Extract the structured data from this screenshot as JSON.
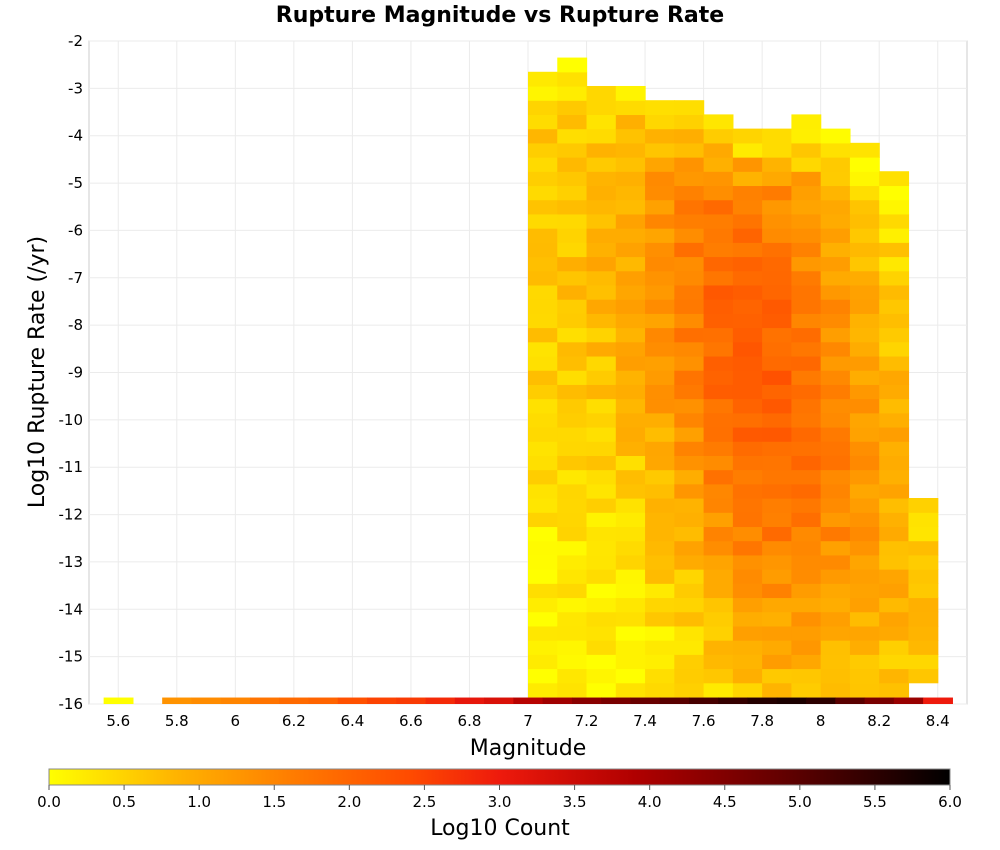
{
  "chart_data": {
    "type": "heatmap",
    "title": "Rupture Magnitude vs Rupture Rate",
    "xlabel": "Magnitude",
    "ylabel": "Log10 Rupture Rate (/yr)",
    "xlim": [
      5.5,
      8.5
    ],
    "ylim": [
      -16,
      -2
    ],
    "x_ticks": [
      "5.6",
      "5.8",
      "6",
      "6.2",
      "6.4",
      "6.6",
      "6.8",
      "7",
      "7.2",
      "7.4",
      "7.6",
      "7.8",
      "8",
      "8.2",
      "8.4"
    ],
    "y_ticks": [
      "-2",
      "-3",
      "-4",
      "-5",
      "-6",
      "-7",
      "-8",
      "-9",
      "-10",
      "-11",
      "-12",
      "-13",
      "-14",
      "-15",
      "-16"
    ],
    "x_bin_width": 0.1,
    "y_bin_height": 0.3,
    "grid": true,
    "colorbar": {
      "label": "Log10 Count",
      "min": 0,
      "max": 6,
      "ticks": [
        "0.0",
        "0.5",
        "1.0",
        "1.5",
        "2.0",
        "2.5",
        "3.0",
        "3.5",
        "4.0",
        "4.5",
        "5.0",
        "5.5",
        "6.0"
      ],
      "colormap": [
        "#ffff00",
        "#ffb400",
        "#ff7800",
        "#ff4b00",
        "#ee1a0c",
        "#b00000",
        "#600000",
        "#000000"
      ]
    },
    "bottom_row": {
      "log_rate": -15.95,
      "x": [
        5.6,
        5.8,
        5.9,
        6.0,
        6.1,
        6.2,
        6.3,
        6.4,
        6.5,
        6.6,
        6.7,
        6.8,
        6.9,
        7.0,
        7.1,
        7.2,
        7.3,
        7.4,
        7.5,
        7.6,
        7.7,
        7.8,
        7.9,
        8.0,
        8.1,
        8.2,
        8.3,
        8.4
      ],
      "values": [
        0.0,
        1.3,
        1.4,
        1.5,
        1.75,
        1.9,
        2.0,
        2.3,
        2.5,
        2.6,
        2.8,
        3.1,
        3.3,
        3.8,
        4.1,
        4.4,
        4.6,
        4.8,
        5.0,
        5.2,
        5.4,
        5.6,
        5.7,
        5.5,
        5.0,
        4.6,
        4.2,
        3.0
      ]
    },
    "columns": [
      {
        "x": 7.05,
        "rate_min": -15.85,
        "rate_max": -2.65
      },
      {
        "x": 7.15,
        "rate_min": -15.85,
        "rate_max": -2.4
      },
      {
        "x": 7.25,
        "rate_min": -15.85,
        "rate_max": -2.95
      },
      {
        "x": 7.35,
        "rate_min": -15.85,
        "rate_max": -2.95
      },
      {
        "x": 7.45,
        "rate_min": -15.85,
        "rate_max": -3.25
      },
      {
        "x": 7.55,
        "rate_min": -15.85,
        "rate_max": -3.25
      },
      {
        "x": 7.65,
        "rate_min": -15.85,
        "rate_max": -3.55
      },
      {
        "x": 7.75,
        "rate_min": -15.85,
        "rate_max": -3.85
      },
      {
        "x": 7.85,
        "rate_min": -15.85,
        "rate_max": -3.85
      },
      {
        "x": 7.95,
        "rate_min": -15.85,
        "rate_max": -3.55
      },
      {
        "x": 8.05,
        "rate_min": -15.85,
        "rate_max": -3.85
      },
      {
        "x": 8.15,
        "rate_min": -15.85,
        "rate_max": -4.15
      },
      {
        "x": 8.25,
        "rate_min": -15.85,
        "rate_max": -4.75
      },
      {
        "x": 8.35,
        "rate_min": -15.55,
        "rate_max": -11.8
      }
    ]
  }
}
